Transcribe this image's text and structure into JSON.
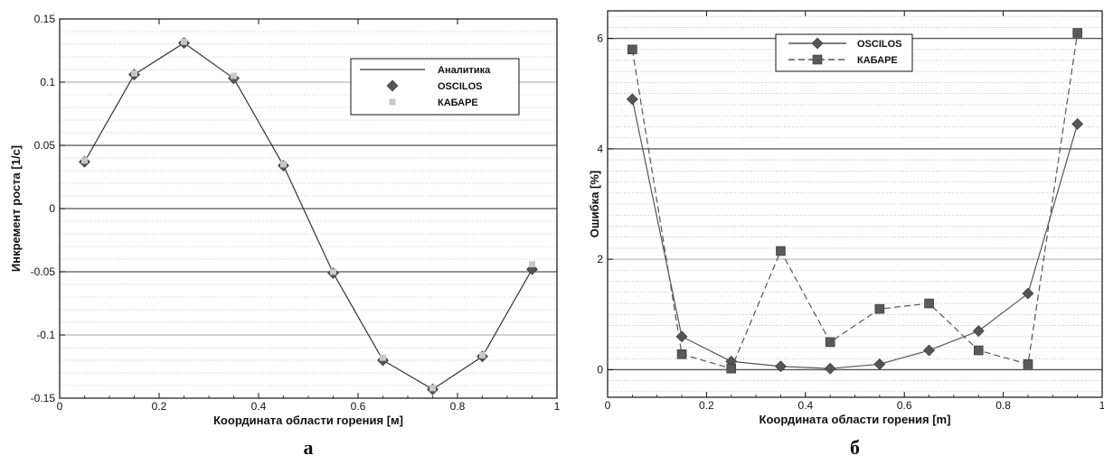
{
  "chart_data": [
    {
      "type": "line",
      "panel_label": "а",
      "xlabel": "Координата области горения [м]",
      "ylabel": "Инкремент роста [1/c]",
      "xlim": [
        0,
        1
      ],
      "ylim": [
        -0.15,
        0.15
      ],
      "xticks": [
        "0",
        "0.2",
        "0.4",
        "0.6",
        "0.8",
        "1"
      ],
      "yticks": [
        "-0.15",
        "-0.1",
        "-0.05",
        "0",
        "0.05",
        "0.1",
        "0.15"
      ],
      "grid": true,
      "legend_position": "top-right",
      "series": [
        {
          "name": "Аналитика",
          "style": "solid-line",
          "color": "#333333",
          "x": [
            0.05,
            0.15,
            0.25,
            0.35,
            0.45,
            0.55,
            0.65,
            0.75,
            0.85,
            0.95
          ],
          "y": [
            0.037,
            0.106,
            0.131,
            0.103,
            0.034,
            -0.051,
            -0.12,
            -0.143,
            -0.117,
            -0.048
          ]
        },
        {
          "name": "OSCILOS",
          "style": "diamond-marker",
          "color": "#555555",
          "x": [
            0.05,
            0.15,
            0.25,
            0.35,
            0.45,
            0.55,
            0.65,
            0.75,
            0.85,
            0.95
          ],
          "y": [
            0.037,
            0.106,
            0.131,
            0.103,
            0.034,
            -0.051,
            -0.12,
            -0.143,
            -0.117,
            -0.048
          ]
        },
        {
          "name": "КАБАРЕ",
          "style": "square-marker",
          "color": "#c8c8c8",
          "x": [
            0.05,
            0.15,
            0.25,
            0.35,
            0.45,
            0.55,
            0.65,
            0.75,
            0.85,
            0.95
          ],
          "y": [
            0.038,
            0.107,
            0.132,
            0.105,
            0.035,
            -0.05,
            -0.118,
            -0.142,
            -0.116,
            -0.044
          ]
        }
      ]
    },
    {
      "type": "line",
      "panel_label": "б",
      "xlabel": "Координата области горения [m]",
      "ylabel": "Ошибка [%]",
      "xlim": [
        0,
        1
      ],
      "ylim": [
        -0.5,
        6.5
      ],
      "xticks": [
        "0",
        "0.2",
        "0.4",
        "0.6",
        "0.8",
        "1"
      ],
      "yticks": [
        "0",
        "2",
        "4",
        "6"
      ],
      "grid": true,
      "legend_position": "top-left",
      "series": [
        {
          "name": "OSCILOS",
          "style": "solid-line-diamond",
          "color": "#555555",
          "x": [
            0.05,
            0.15,
            0.25,
            0.35,
            0.45,
            0.55,
            0.65,
            0.75,
            0.85,
            0.95
          ],
          "y": [
            4.9,
            0.6,
            0.15,
            0.06,
            0.02,
            0.1,
            0.35,
            0.7,
            1.38,
            4.45
          ]
        },
        {
          "name": "КАБАРЕ",
          "style": "dashed-line-square",
          "color": "#555555",
          "x": [
            0.05,
            0.15,
            0.25,
            0.35,
            0.45,
            0.55,
            0.65,
            0.75,
            0.85,
            0.95
          ],
          "y": [
            5.8,
            0.28,
            0.02,
            2.15,
            0.5,
            1.1,
            1.2,
            0.35,
            0.1,
            6.1
          ]
        }
      ]
    }
  ]
}
